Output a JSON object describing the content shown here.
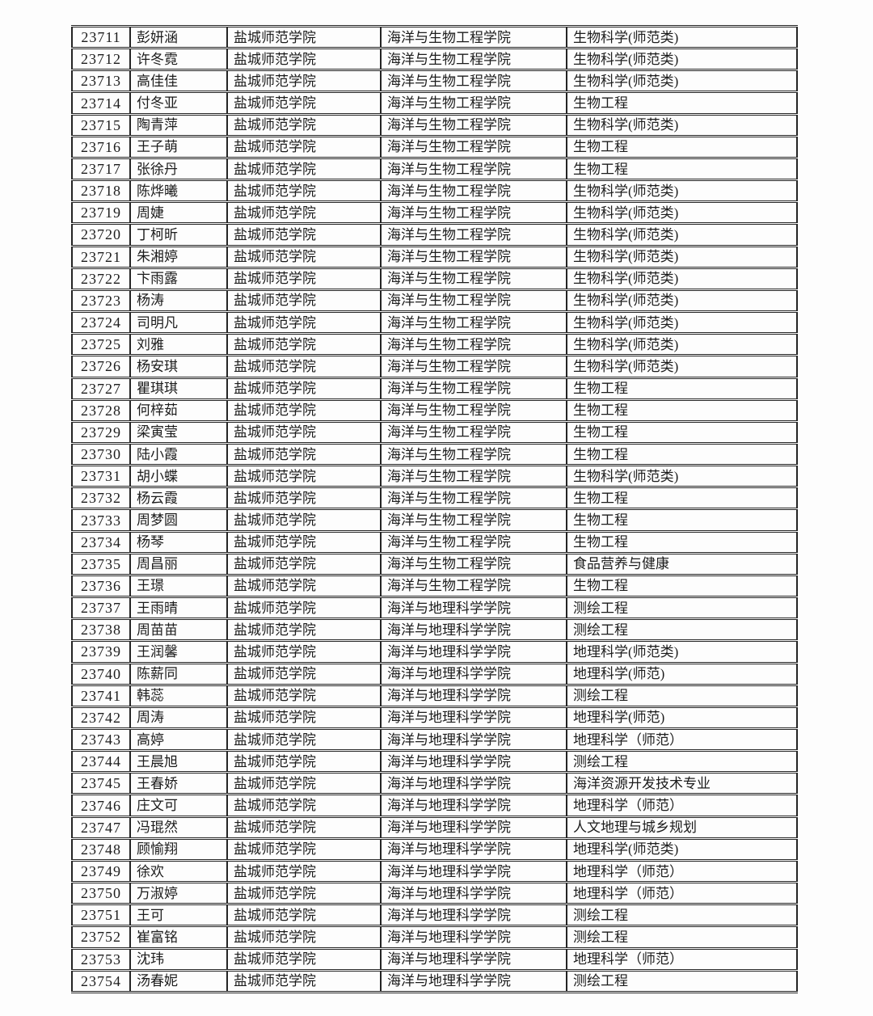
{
  "document": {
    "kind": "scanned-student-roster-table",
    "text_color": "#1c1c1c",
    "border_color": "#242424",
    "background_color": "#fdfdfd"
  },
  "table": {
    "row_count": 44,
    "id_range": "23711-23754",
    "rows": [
      [
        "23711",
        "彭妍涵",
        "盐城师范学院",
        "海洋与生物工程学院",
        "生物科学(师范类)"
      ],
      [
        "23712",
        "许冬霓",
        "盐城师范学院",
        "海洋与生物工程学院",
        "生物科学(师范类)"
      ],
      [
        "23713",
        "高佳佳",
        "盐城师范学院",
        "海洋与生物工程学院",
        "生物科学(师范类)"
      ],
      [
        "23714",
        "付冬亚",
        "盐城师范学院",
        "海洋与生物工程学院",
        "生物工程"
      ],
      [
        "23715",
        "陶青萍",
        "盐城师范学院",
        "海洋与生物工程学院",
        "生物科学(师范类)"
      ],
      [
        "23716",
        "王子萌",
        "盐城师范学院",
        "海洋与生物工程学院",
        "生物工程"
      ],
      [
        "23717",
        "张徐丹",
        "盐城师范学院",
        "海洋与生物工程学院",
        "生物工程"
      ],
      [
        "23718",
        "陈烨曦",
        "盐城师范学院",
        "海洋与生物工程学院",
        "生物科学(师范类)"
      ],
      [
        "23719",
        "周婕",
        "盐城师范学院",
        "海洋与生物工程学院",
        "生物科学(师范类)"
      ],
      [
        "23720",
        "丁柯昕",
        "盐城师范学院",
        "海洋与生物工程学院",
        "生物科学(师范类)"
      ],
      [
        "23721",
        "朱湘婷",
        "盐城师范学院",
        "海洋与生物工程学院",
        "生物科学(师范类)"
      ],
      [
        "23722",
        "卞雨露",
        "盐城师范学院",
        "海洋与生物工程学院",
        "生物科学(师范类)"
      ],
      [
        "23723",
        "杨涛",
        "盐城师范学院",
        "海洋与生物工程学院",
        "生物科学(师范类)"
      ],
      [
        "23724",
        "司明凡",
        "盐城师范学院",
        "海洋与生物工程学院",
        "生物科学(师范类)"
      ],
      [
        "23725",
        "刘雅",
        "盐城师范学院",
        "海洋与生物工程学院",
        "生物科学(师范类)"
      ],
      [
        "23726",
        "杨安琪",
        "盐城师范学院",
        "海洋与生物工程学院",
        "生物科学(师范类)"
      ],
      [
        "23727",
        "瞿琪琪",
        "盐城师范学院",
        "海洋与生物工程学院",
        "生物工程"
      ],
      [
        "23728",
        "何梓茹",
        "盐城师范学院",
        "海洋与生物工程学院",
        "生物工程"
      ],
      [
        "23729",
        "梁寅莹",
        "盐城师范学院",
        "海洋与生物工程学院",
        "生物工程"
      ],
      [
        "23730",
        "陆小霞",
        "盐城师范学院",
        "海洋与生物工程学院",
        "生物工程"
      ],
      [
        "23731",
        "胡小蝶",
        "盐城师范学院",
        "海洋与生物工程学院",
        "生物科学(师范类)"
      ],
      [
        "23732",
        "杨云霞",
        "盐城师范学院",
        "海洋与生物工程学院",
        "生物工程"
      ],
      [
        "23733",
        "周梦圆",
        "盐城师范学院",
        "海洋与生物工程学院",
        "生物工程"
      ],
      [
        "23734",
        "杨琴",
        "盐城师范学院",
        "海洋与生物工程学院",
        "生物工程"
      ],
      [
        "23735",
        "周昌丽",
        "盐城师范学院",
        "海洋与生物工程学院",
        "食品营养与健康"
      ],
      [
        "23736",
        "王璟",
        "盐城师范学院",
        "海洋与生物工程学院",
        "生物工程"
      ],
      [
        "23737",
        "王雨晴",
        "盐城师范学院",
        "海洋与地理科学学院",
        "测绘工程"
      ],
      [
        "23738",
        "周苗苗",
        "盐城师范学院",
        "海洋与地理科学学院",
        "测绘工程"
      ],
      [
        "23739",
        "王润馨",
        "盐城师范学院",
        "海洋与地理科学学院",
        "地理科学(师范类)"
      ],
      [
        "23740",
        "陈薪同",
        "盐城师范学院",
        "海洋与地理科学学院",
        "地理科学(师范)"
      ],
      [
        "23741",
        "韩蕊",
        "盐城师范学院",
        "海洋与地理科学学院",
        "测绘工程"
      ],
      [
        "23742",
        "周涛",
        "盐城师范学院",
        "海洋与地理科学学院",
        "地理科学(师范)"
      ],
      [
        "23743",
        "高婷",
        "盐城师范学院",
        "海洋与地理科学学院",
        "地理科学（师范）"
      ],
      [
        "23744",
        "王晨旭",
        "盐城师范学院",
        "海洋与地理科学学院",
        "测绘工程"
      ],
      [
        "23745",
        "王春娇",
        "盐城师范学院",
        "海洋与地理科学学院",
        "海洋资源开发技术专业"
      ],
      [
        "23746",
        "庄文可",
        "盐城师范学院",
        "海洋与地理科学学院",
        "地理科学（师范）"
      ],
      [
        "23747",
        "冯琨然",
        "盐城师范学院",
        "海洋与地理科学学院",
        "人文地理与城乡规划"
      ],
      [
        "23748",
        "顾愉翔",
        "盐城师范学院",
        "海洋与地理科学学院",
        "地理科学(师范类)"
      ],
      [
        "23749",
        "徐欢",
        "盐城师范学院",
        "海洋与地理科学学院",
        "地理科学（师范）"
      ],
      [
        "23750",
        "万淑婷",
        "盐城师范学院",
        "海洋与地理科学学院",
        "地理科学（师范）"
      ],
      [
        "23751",
        "王可",
        "盐城师范学院",
        "海洋与地理科学学院",
        "测绘工程"
      ],
      [
        "23752",
        "崔富铭",
        "盐城师范学院",
        "海洋与地理科学学院",
        "测绘工程"
      ],
      [
        "23753",
        "沈玮",
        "盐城师范学院",
        "海洋与地理科学学院",
        "地理科学（师范）"
      ],
      [
        "23754",
        "汤春妮",
        "盐城师范学院",
        "海洋与地理科学学院",
        "测绘工程"
      ]
    ]
  }
}
